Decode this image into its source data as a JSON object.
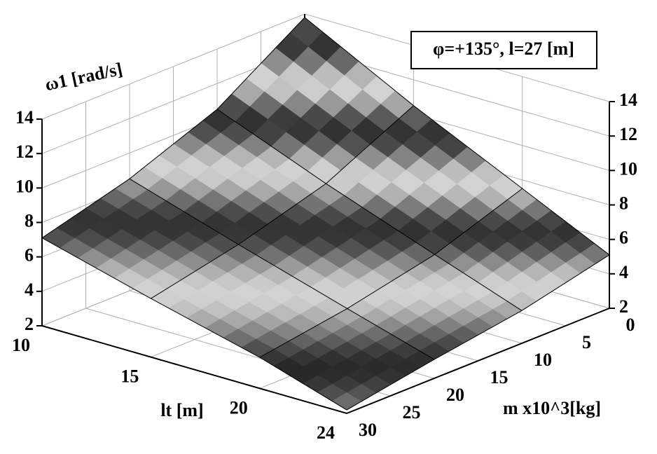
{
  "chart_data": {
    "type": "surface",
    "annotation": "φ=+135°, l=27 [m]",
    "zlabel": "ω1 [rad/s]",
    "xlabel": "lt [m]",
    "ylabel": "m x10^3[kg]",
    "x": [
      10,
      15,
      20,
      24
    ],
    "y": [
      0,
      10,
      20,
      30
    ],
    "z": [
      [
        13.8,
        10.5,
        8.5,
        7.1
      ],
      [
        10.5,
        8.0,
        6.5,
        5.4
      ],
      [
        7.5,
        5.7,
        4.6,
        3.8
      ],
      [
        5.1,
        3.9,
        3.1,
        2.2
      ]
    ],
    "xlim": [
      10,
      24
    ],
    "ylim": [
      0,
      30
    ],
    "zlim": [
      2,
      14
    ],
    "xticks": [
      10,
      15,
      20,
      24
    ],
    "yticks": [
      0,
      5,
      10,
      15,
      20,
      25,
      30
    ],
    "zticks": [
      2,
      4,
      6,
      8,
      10,
      12,
      14
    ],
    "grid": true
  }
}
